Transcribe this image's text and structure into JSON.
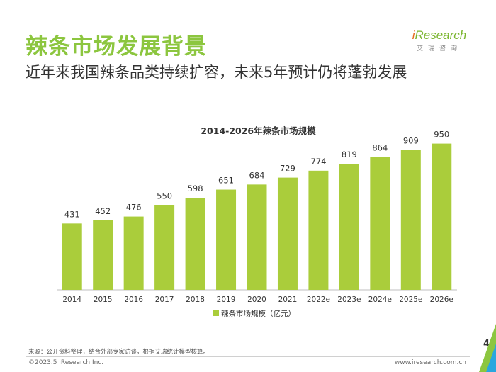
{
  "header": {
    "title": "辣条市场发展背景",
    "subtitle": "近年来我国辣条品类持续扩容，未来5年预计仍将蓬勃发展"
  },
  "logo": {
    "i": "i",
    "word": "Research",
    "subtext": "艾瑞咨询"
  },
  "chart_data": {
    "type": "bar",
    "title": "2014-2026年辣条市场规模",
    "categories": [
      "2014",
      "2015",
      "2016",
      "2017",
      "2018",
      "2019",
      "2020",
      "2021",
      "2022e",
      "2023e",
      "2024e",
      "2025e",
      "2026e"
    ],
    "series": [
      {
        "name": "辣条市场规模（亿元）",
        "values": [
          431,
          452,
          476,
          550,
          598,
          651,
          684,
          729,
          774,
          819,
          864,
          909,
          950
        ]
      }
    ],
    "xlabel": "",
    "ylabel": "",
    "ylim": [
      0,
      1000
    ],
    "grid": false,
    "legend": "bottom-center",
    "color": "#aacd3b"
  },
  "footer": {
    "source": "来源：公开资料整理，结合外部专家访谈，根据艾瑞统计模型核算。",
    "copyright": "©2023.5 iResearch Inc.",
    "website": "www.iresearch.com.cn",
    "page": "4"
  }
}
